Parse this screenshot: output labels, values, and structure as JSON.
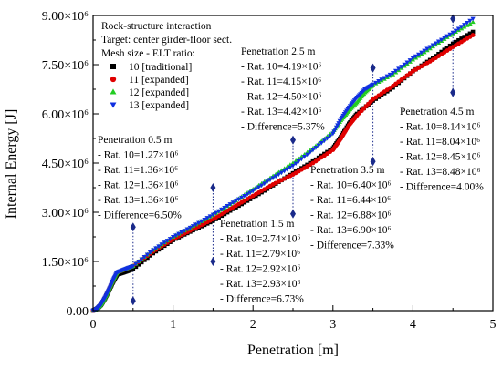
{
  "chart_data": {
    "type": "scatter",
    "xlabel": "Penetration [m]",
    "ylabel": "Internal Energy [J]",
    "xlim": [
      0,
      5
    ],
    "ylim": [
      0,
      9000000
    ],
    "x_ticks": [
      "0",
      "1",
      "2",
      "3",
      "4",
      "5"
    ],
    "y_ticks": [
      "0.00",
      "1.50×10⁶",
      "3.00×10⁶",
      "4.50×10⁶",
      "6.00×10⁶",
      "7.50×10⁶",
      "9.00×10⁶"
    ],
    "grid": false,
    "legend": {
      "placement": "top-left",
      "header_lines": [
        "Rock-structure interaction",
        "Target: center girder-floor sect.",
        "Mesh size - ELT ratio:"
      ]
    },
    "series": [
      {
        "name": "10 [traditional]",
        "color": "#000000",
        "marker": "square",
        "x": [
          0.0,
          0.05,
          0.1,
          0.15,
          0.2,
          0.25,
          0.3,
          0.4,
          0.5,
          0.75,
          1.0,
          1.25,
          1.5,
          1.75,
          2.0,
          2.25,
          2.5,
          2.75,
          3.0,
          3.1,
          3.2,
          3.3,
          3.5,
          3.75,
          4.0,
          4.25,
          4.5,
          4.75
        ],
        "y": [
          0,
          60000,
          180000,
          380000,
          620000,
          880000,
          1100000,
          1180000,
          1270000,
          1750000,
          2150000,
          2450000,
          2740000,
          3100000,
          3450000,
          3820000,
          4190000,
          4550000,
          4950000,
          5300000,
          5700000,
          6000000,
          6400000,
          6800000,
          7300000,
          7700000,
          8140000,
          8500000
        ]
      },
      {
        "name": "11 [expanded]",
        "color": "#e00000",
        "marker": "circle",
        "x": [
          0.0,
          0.05,
          0.1,
          0.15,
          0.2,
          0.25,
          0.3,
          0.4,
          0.5,
          0.75,
          1.0,
          1.25,
          1.5,
          1.75,
          2.0,
          2.25,
          2.5,
          2.75,
          3.0,
          3.1,
          3.2,
          3.3,
          3.5,
          3.75,
          4.0,
          4.25,
          4.5,
          4.75
        ],
        "y": [
          0,
          60000,
          190000,
          400000,
          650000,
          920000,
          1160000,
          1260000,
          1360000,
          1800000,
          2180000,
          2480000,
          2790000,
          3150000,
          3500000,
          3850000,
          4150000,
          4500000,
          4900000,
          5250000,
          5650000,
          5950000,
          6440000,
          6850000,
          7300000,
          7650000,
          8040000,
          8400000
        ]
      },
      {
        "name": "12 [expanded]",
        "color": "#22cc22",
        "marker": "triangle-up",
        "x": [
          0.0,
          0.05,
          0.1,
          0.15,
          0.2,
          0.25,
          0.3,
          0.4,
          0.5,
          0.75,
          1.0,
          1.25,
          1.5,
          1.75,
          2.0,
          2.25,
          2.5,
          2.75,
          3.0,
          3.1,
          3.2,
          3.3,
          3.4,
          3.5,
          3.75,
          4.0,
          4.25,
          4.5,
          4.75
        ],
        "y": [
          0,
          60000,
          190000,
          400000,
          650000,
          930000,
          1170000,
          1270000,
          1360000,
          1850000,
          2250000,
          2580000,
          2920000,
          3300000,
          3700000,
          4100000,
          4500000,
          4950000,
          5450000,
          5800000,
          6100000,
          6350000,
          6650000,
          6880000,
          7200000,
          7650000,
          8050000,
          8450000,
          8800000
        ]
      },
      {
        "name": "13 [expanded]",
        "color": "#1030e0",
        "marker": "triangle-down",
        "x": [
          0.0,
          0.05,
          0.1,
          0.15,
          0.2,
          0.25,
          0.3,
          0.4,
          0.5,
          0.75,
          1.0,
          1.25,
          1.5,
          1.75,
          2.0,
          2.25,
          2.5,
          2.75,
          3.0,
          3.1,
          3.2,
          3.3,
          3.4,
          3.5,
          3.75,
          4.0,
          4.25,
          4.5,
          4.75
        ],
        "y": [
          0,
          60000,
          190000,
          400000,
          650000,
          930000,
          1170000,
          1270000,
          1360000,
          1850000,
          2250000,
          2580000,
          2930000,
          3300000,
          3650000,
          4050000,
          4420000,
          4900000,
          5400000,
          5850000,
          6200000,
          6500000,
          6750000,
          6900000,
          7250000,
          7700000,
          8100000,
          8480000,
          8900000
        ]
      }
    ],
    "markers": [
      {
        "x": 0.5,
        "y_low": 300000,
        "y_high": 2550000
      },
      {
        "x": 1.5,
        "y_low": 1500000,
        "y_high": 3750000
      },
      {
        "x": 2.5,
        "y_low": 2950000,
        "y_high": 5200000
      },
      {
        "x": 3.5,
        "y_low": 4550000,
        "y_high": 7400000
      },
      {
        "x": 4.5,
        "y_low": 6650000,
        "y_high": 8900000
      }
    ],
    "annotations": [
      {
        "lines": [
          "Penetration 0.5 m",
          "- Rat. 10=1.27×10⁶",
          "- Rat. 11=1.36×10⁶",
          "- Rat. 12=1.36×10⁶",
          "- Rat. 13=1.36×10⁶",
          "- Difference=6.50%"
        ]
      },
      {
        "lines": [
          "Penetration 1.5 m",
          "- Rat. 10=2.74×10⁶",
          "- Rat. 11=2.79×10⁶",
          "- Rat. 12=2.92×10⁶",
          "- Rat. 13=2.93×10⁶",
          "- Difference=6.73%"
        ]
      },
      {
        "lines": [
          "Penetration 2.5 m",
          "- Rat. 10=4.19×10⁶",
          "- Rat. 11=4.15×10⁶",
          "- Rat. 12=4.50×10⁶",
          "- Rat. 13=4.42×10⁶",
          "- Difference=5.37%"
        ]
      },
      {
        "lines": [
          "Penetration 3.5 m",
          "- Rat. 10=6.40×10⁶",
          "- Rat. 11=6.44×10⁶",
          "- Rat. 12=6.88×10⁶",
          "- Rat. 13=6.90×10⁶",
          "- Difference=7.33%"
        ]
      },
      {
        "lines": [
          "Penetration 4.5 m",
          "- Rat. 10=8.14×10⁶",
          "- Rat. 11=8.04×10⁶",
          "- Rat. 12=8.45×10⁶",
          "- Rat. 13=8.48×10⁶",
          "- Difference=4.00%"
        ]
      }
    ]
  }
}
